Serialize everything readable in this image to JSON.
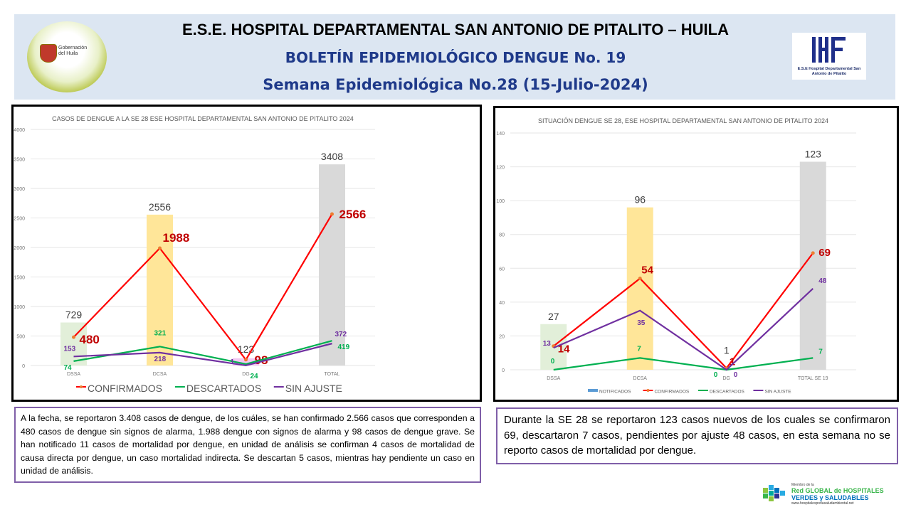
{
  "header": {
    "title": "E.S.E. HOSPITAL DEPARTAMENTAL SAN ANTONIO DE PITALITO  –  HUILA",
    "subtitle": "BOLETÍN EPIDEMIOLÓGICO DENGUE No. 19",
    "week": "Semana Epidemiológica No.28 (15-Julio-2024)",
    "left_logo_text": "Gobernación del Huila",
    "right_logo_text": "E.S.E Hospital Departamental San Antonio de Pitalito"
  },
  "chart_data": [
    {
      "type": "bar+line",
      "title": "CASOS DE DENGUE A LA SE 28 ESE HOSPITAL DEPARTAMENTAL SAN ANTONIO DE PITALITO 2024",
      "categories": [
        "DSSA",
        "DCSA",
        "DG",
        "TOTAL"
      ],
      "ylim": [
        0,
        4000
      ],
      "yticks": [
        0,
        500,
        1000,
        1500,
        2000,
        2500,
        3000,
        3500,
        4000
      ],
      "grid": true,
      "legend_position": "bottom",
      "bars": {
        "values": [
          729,
          2556,
          123,
          3408
        ],
        "colors": [
          "#e2efd9",
          "#ffe699",
          "#f2c7f2",
          "#d9d9d9"
        ]
      },
      "series": [
        {
          "name": "CONFIRMADOS",
          "values": [
            480,
            1988,
            98,
            2566
          ],
          "color": "#ff0000"
        },
        {
          "name": "DESCARTADOS",
          "values": [
            74,
            321,
            24,
            419
          ],
          "color": "#00b050"
        },
        {
          "name": "SIN AJUSTE",
          "values": [
            153,
            218,
            1,
            372
          ],
          "color": "#7030a0"
        }
      ]
    },
    {
      "type": "bar+line",
      "title": "SITUACIÓN DENGUE SE 28, ESE HOSPITAL DEPARTAMENTAL SAN ANTONIO DE PITALITO 2024",
      "categories": [
        "DSSA",
        "DCSA",
        "DG",
        "TOTAL SE 19"
      ],
      "ylim": [
        0,
        140
      ],
      "yticks": [
        0,
        20,
        40,
        60,
        80,
        100,
        120,
        140
      ],
      "grid": true,
      "legend_position": "bottom",
      "bars": {
        "name": "NOTIFICADOS",
        "values": [
          27,
          96,
          1,
          123
        ],
        "colors": [
          "#e2efd9",
          "#ffe699",
          "#d9d9d9",
          "#d9d9d9"
        ],
        "legend_color": "#5b9bd5"
      },
      "series": [
        {
          "name": "CONFIRMADOS",
          "values": [
            14,
            54,
            1,
            69
          ],
          "color": "#ff0000"
        },
        {
          "name": "DESCARTADOS",
          "values": [
            0,
            7,
            0,
            7
          ],
          "color": "#00b050"
        },
        {
          "name": "SIN AJUSTE",
          "values": [
            13,
            35,
            0,
            48
          ],
          "color": "#7030a0"
        }
      ]
    }
  ],
  "text_left": "A la fecha, se reportaron 3.408 casos de dengue, de los cuáles, se han confirmado  2.566 casos que corresponden a 480 casos de dengue sin signos de alarma, 1.988 dengue con signos de alarma y 98 casos de dengue grave. Se han notificado 11 casos de mortalidad  por dengue, en unidad de análisis se confirman 4 casos de mortalidad de causa directa por dengue, un caso mortalidad indirecta. Se descartan 5 casos, mientras hay pendiente un caso en unidad de análisis.",
  "text_right": "Durante la  SE 28 se reportaron 123 casos nuevos de los cuales se confirmaron 69, descartaron 7 casos, pendientes por ajuste 48 casos, en esta semana no se reporto casos de mortalidad por dengue.",
  "footer_logo": {
    "line1": "Miembro de la",
    "line2": "Red GLOBAL de HOSPITALES",
    "line3": "VERDES y SALUDABLES",
    "line4": "www.hospitalesporlasaludambiental.net"
  }
}
